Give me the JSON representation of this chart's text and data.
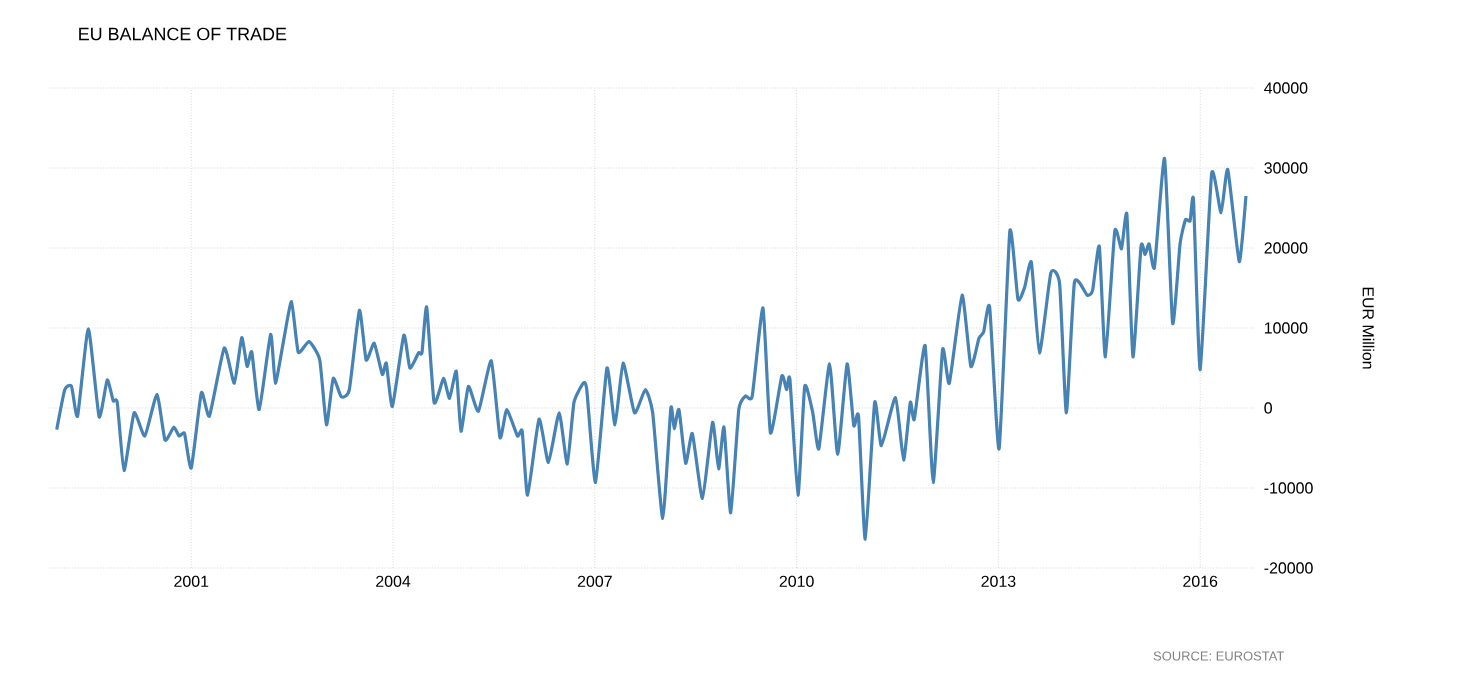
{
  "chart_data": {
    "type": "line",
    "title": "EU BALANCE OF TRADE",
    "ylabel": "EUR Million",
    "annotations": [
      "SOURCE: EUROSTAT"
    ],
    "x": [
      1999.0,
      1999.12,
      1999.22,
      1999.31,
      1999.47,
      1999.63,
      1999.75,
      1999.84,
      1999.9,
      2000.0,
      2000.15,
      2000.31,
      2000.49,
      2000.61,
      2000.74,
      2000.82,
      2000.9,
      2001.0,
      2001.15,
      2001.27,
      2001.49,
      2001.64,
      2001.75,
      2001.83,
      2001.9,
      2002.01,
      2002.18,
      2002.25,
      2002.37,
      2002.49,
      2002.59,
      2002.75,
      2002.91,
      2003.01,
      2003.11,
      2003.23,
      2003.35,
      2003.5,
      2003.6,
      2003.72,
      2003.84,
      2003.9,
      2003.99,
      2004.16,
      2004.25,
      2004.38,
      2004.43,
      2004.5,
      2004.61,
      2004.75,
      2004.84,
      2004.94,
      2005.01,
      2005.12,
      2005.27,
      2005.46,
      2005.59,
      2005.69,
      2005.85,
      2005.92,
      2006.0,
      2006.17,
      2006.31,
      2006.47,
      2006.59,
      2006.69,
      2006.83,
      2006.88,
      2007.01,
      2007.18,
      2007.3,
      2007.42,
      2007.59,
      2007.75,
      2007.86,
      2008.01,
      2008.13,
      2008.18,
      2008.25,
      2008.35,
      2008.45,
      2008.6,
      2008.75,
      2008.84,
      2008.92,
      2009.02,
      2009.14,
      2009.24,
      2009.34,
      2009.5,
      2009.61,
      2009.78,
      2009.85,
      2009.9,
      2010.02,
      2010.12,
      2010.24,
      2010.33,
      2010.49,
      2010.61,
      2010.75,
      2010.85,
      2010.92,
      2011.02,
      2011.16,
      2011.26,
      2011.47,
      2011.59,
      2011.69,
      2011.75,
      2011.91,
      2012.03,
      2012.17,
      2012.27,
      2012.46,
      2012.59,
      2012.71,
      2012.78,
      2012.87,
      2013.01,
      2013.17,
      2013.29,
      2013.39,
      2013.49,
      2013.61,
      2013.78,
      2013.91,
      2014.01,
      2014.13,
      2014.32,
      2014.4,
      2014.5,
      2014.59,
      2014.73,
      2014.83,
      2014.91,
      2015.0,
      2015.12,
      2015.18,
      2015.24,
      2015.32,
      2015.47,
      2015.59,
      2015.7,
      2015.78,
      2015.85,
      2015.9,
      2016.0,
      2016.17,
      2016.31,
      2016.41,
      2016.58,
      2016.68
    ],
    "series": [
      {
        "color": "#4682b4",
        "values": [
          -2700,
          2300,
          2700,
          -1000,
          9900,
          -1100,
          3500,
          900,
          700,
          -7800,
          -600,
          -3500,
          1700,
          -4000,
          -2400,
          -3500,
          -3200,
          -7500,
          1900,
          -1000,
          7500,
          3100,
          8800,
          5200,
          7000,
          -200,
          9200,
          3100,
          8300,
          13300,
          7000,
          8300,
          6000,
          -2100,
          3700,
          1400,
          2300,
          12200,
          6000,
          8100,
          4200,
          5600,
          200,
          9100,
          5000,
          6900,
          6900,
          12600,
          700,
          3700,
          1200,
          4600,
          -2900,
          2700,
          -400,
          5900,
          -3700,
          -200,
          -3500,
          -2900,
          -10900,
          -1400,
          -6800,
          -600,
          -7000,
          700,
          3100,
          2300,
          -9300,
          5000,
          -2100,
          5600,
          -600,
          2300,
          -600,
          -13800,
          0,
          -2600,
          -200,
          -6900,
          -3200,
          -11300,
          -1800,
          -7600,
          -2400,
          -13100,
          -200,
          1500,
          1500,
          12500,
          -3100,
          4000,
          2300,
          3600,
          -10900,
          2700,
          -600,
          -5100,
          5500,
          -5800,
          5500,
          -2200,
          -1000,
          -16400,
          700,
          -4700,
          1300,
          -6500,
          700,
          -1400,
          7800,
          -9300,
          7300,
          3100,
          14100,
          5200,
          8700,
          9500,
          12600,
          -5100,
          22100,
          13600,
          15100,
          18200,
          6900,
          16900,
          15500,
          -600,
          15700,
          14100,
          14700,
          20200,
          6400,
          22100,
          19900,
          24200,
          6400,
          20200,
          19200,
          20500,
          17600,
          31200,
          10600,
          20500,
          23500,
          23400,
          26000,
          4800,
          29300,
          24400,
          29800,
          18300,
          26500
        ]
      }
    ],
    "xlim": [
      1998.9,
      2016.8
    ],
    "ylim": [
      -20000,
      40000
    ],
    "xticks": [
      2001,
      2004,
      2007,
      2010,
      2013,
      2016
    ],
    "yticks": [
      -20000,
      -10000,
      0,
      10000,
      20000,
      30000,
      40000
    ],
    "grid": true,
    "marker": "none",
    "line_style": "solid"
  }
}
